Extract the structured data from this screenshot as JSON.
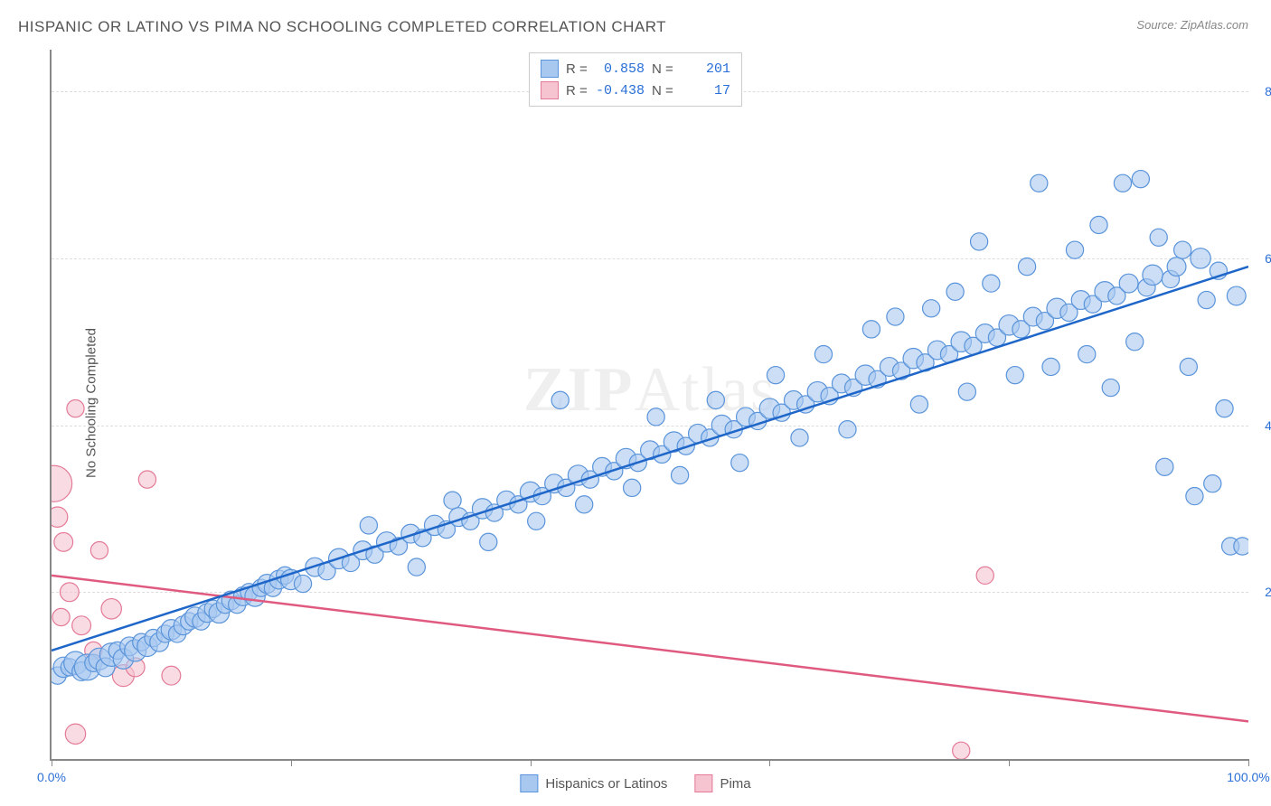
{
  "title": "HISPANIC OR LATINO VS PIMA NO SCHOOLING COMPLETED CORRELATION CHART",
  "source_label": "Source:",
  "source_name": "ZipAtlas.com",
  "ylabel": "No Schooling Completed",
  "watermark_bold": "ZIP",
  "watermark_light": "Atlas",
  "chart": {
    "type": "scatter-with-regression",
    "xlim": [
      0,
      100
    ],
    "ylim": [
      0,
      8.5
    ],
    "xtick_positions": [
      0,
      20,
      40,
      60,
      80,
      100
    ],
    "xtick_labels": [
      "0.0%",
      "",
      "",
      "",
      "",
      "100.0%"
    ],
    "ytick_positions": [
      2,
      4,
      6,
      8
    ],
    "ytick_labels": [
      "2.0%",
      "4.0%",
      "6.0%",
      "8.0%"
    ],
    "background_color": "#ffffff",
    "grid_color": "#dddddd",
    "axis_color": "#888888",
    "series": [
      {
        "name": "Hispanics or Latinos",
        "key": "hispanic",
        "color_fill": "#a8c8f0",
        "color_stroke": "#5a94da",
        "line_color": "#1f66c9",
        "marker_opacity": 0.6,
        "marker_radius_base": 8,
        "R": "0.858",
        "N": "201",
        "reg_line": {
          "x1": 0,
          "y1": 1.3,
          "x2": 100,
          "y2": 5.9
        },
        "points": [
          [
            0.5,
            1.0,
            1.2
          ],
          [
            1,
            1.1,
            1.4
          ],
          [
            1.5,
            1.1,
            1.2
          ],
          [
            2,
            1.15,
            1.6
          ],
          [
            2.5,
            1.05,
            1.3
          ],
          [
            3,
            1.1,
            1.8
          ],
          [
            3.5,
            1.15,
            1.2
          ],
          [
            4,
            1.2,
            1.5
          ],
          [
            4.5,
            1.1,
            1.3
          ],
          [
            5,
            1.25,
            1.6
          ],
          [
            5.5,
            1.3,
            1.2
          ],
          [
            6,
            1.2,
            1.4
          ],
          [
            6.5,
            1.35,
            1.3
          ],
          [
            7,
            1.3,
            1.5
          ],
          [
            7.5,
            1.4,
            1.2
          ],
          [
            8,
            1.35,
            1.4
          ],
          [
            8.5,
            1.45,
            1.2
          ],
          [
            9,
            1.4,
            1.3
          ],
          [
            9.5,
            1.5,
            1.2
          ],
          [
            10,
            1.55,
            1.4
          ],
          [
            10.5,
            1.5,
            1.2
          ],
          [
            11,
            1.6,
            1.3
          ],
          [
            11.5,
            1.65,
            1.2
          ],
          [
            12,
            1.7,
            1.4
          ],
          [
            12.5,
            1.65,
            1.2
          ],
          [
            13,
            1.75,
            1.3
          ],
          [
            13.5,
            1.8,
            1.2
          ],
          [
            14,
            1.75,
            1.4
          ],
          [
            14.5,
            1.85,
            1.2
          ],
          [
            15,
            1.9,
            1.3
          ],
          [
            15.5,
            1.85,
            1.2
          ],
          [
            16,
            1.95,
            1.3
          ],
          [
            16.5,
            2.0,
            1.2
          ],
          [
            17,
            1.95,
            1.4
          ],
          [
            17.5,
            2.05,
            1.2
          ],
          [
            18,
            2.1,
            1.3
          ],
          [
            18.5,
            2.05,
            1.2
          ],
          [
            19,
            2.15,
            1.3
          ],
          [
            19.5,
            2.2,
            1.2
          ],
          [
            20,
            2.15,
            1.4
          ],
          [
            21,
            2.1,
            1.2
          ],
          [
            22,
            2.3,
            1.3
          ],
          [
            23,
            2.25,
            1.2
          ],
          [
            24,
            2.4,
            1.4
          ],
          [
            25,
            2.35,
            1.2
          ],
          [
            26,
            2.5,
            1.3
          ],
          [
            26.5,
            2.8,
            1.2
          ],
          [
            27,
            2.45,
            1.2
          ],
          [
            28,
            2.6,
            1.4
          ],
          [
            29,
            2.55,
            1.2
          ],
          [
            30,
            2.7,
            1.3
          ],
          [
            30.5,
            2.3,
            1.2
          ],
          [
            31,
            2.65,
            1.2
          ],
          [
            32,
            2.8,
            1.4
          ],
          [
            33,
            2.75,
            1.2
          ],
          [
            33.5,
            3.1,
            1.2
          ],
          [
            34,
            2.9,
            1.3
          ],
          [
            35,
            2.85,
            1.2
          ],
          [
            36,
            3.0,
            1.4
          ],
          [
            36.5,
            2.6,
            1.2
          ],
          [
            37,
            2.95,
            1.2
          ],
          [
            38,
            3.1,
            1.3
          ],
          [
            39,
            3.05,
            1.2
          ],
          [
            40,
            3.2,
            1.4
          ],
          [
            40.5,
            2.85,
            1.2
          ],
          [
            41,
            3.15,
            1.2
          ],
          [
            42,
            3.3,
            1.3
          ],
          [
            42.5,
            4.3,
            1.2
          ],
          [
            43,
            3.25,
            1.2
          ],
          [
            44,
            3.4,
            1.4
          ],
          [
            44.5,
            3.05,
            1.2
          ],
          [
            45,
            3.35,
            1.2
          ],
          [
            46,
            3.5,
            1.3
          ],
          [
            47,
            3.45,
            1.2
          ],
          [
            48,
            3.6,
            1.4
          ],
          [
            48.5,
            3.25,
            1.2
          ],
          [
            49,
            3.55,
            1.2
          ],
          [
            50,
            3.7,
            1.3
          ],
          [
            50.5,
            4.1,
            1.2
          ],
          [
            51,
            3.65,
            1.2
          ],
          [
            52,
            3.8,
            1.4
          ],
          [
            52.5,
            3.4,
            1.2
          ],
          [
            53,
            3.75,
            1.2
          ],
          [
            54,
            3.9,
            1.3
          ],
          [
            55,
            3.85,
            1.2
          ],
          [
            55.5,
            4.3,
            1.2
          ],
          [
            56,
            4.0,
            1.4
          ],
          [
            57,
            3.95,
            1.2
          ],
          [
            57.5,
            3.55,
            1.2
          ],
          [
            58,
            4.1,
            1.3
          ],
          [
            59,
            4.05,
            1.2
          ],
          [
            60,
            4.2,
            1.4
          ],
          [
            60.5,
            4.6,
            1.2
          ],
          [
            61,
            4.15,
            1.2
          ],
          [
            62,
            4.3,
            1.3
          ],
          [
            62.5,
            3.85,
            1.2
          ],
          [
            63,
            4.25,
            1.2
          ],
          [
            64,
            4.4,
            1.4
          ],
          [
            64.5,
            4.85,
            1.2
          ],
          [
            65,
            4.35,
            1.2
          ],
          [
            66,
            4.5,
            1.3
          ],
          [
            66.5,
            3.95,
            1.2
          ],
          [
            67,
            4.45,
            1.2
          ],
          [
            68,
            4.6,
            1.4
          ],
          [
            68.5,
            5.15,
            1.2
          ],
          [
            69,
            4.55,
            1.2
          ],
          [
            70,
            4.7,
            1.3
          ],
          [
            70.5,
            5.3,
            1.2
          ],
          [
            71,
            4.65,
            1.2
          ],
          [
            72,
            4.8,
            1.4
          ],
          [
            72.5,
            4.25,
            1.2
          ],
          [
            73,
            4.75,
            1.2
          ],
          [
            73.5,
            5.4,
            1.2
          ],
          [
            74,
            4.9,
            1.3
          ],
          [
            75,
            4.85,
            1.2
          ],
          [
            75.5,
            5.6,
            1.2
          ],
          [
            76,
            5.0,
            1.4
          ],
          [
            76.5,
            4.4,
            1.2
          ],
          [
            77,
            4.95,
            1.2
          ],
          [
            77.5,
            6.2,
            1.2
          ],
          [
            78,
            5.1,
            1.3
          ],
          [
            78.5,
            5.7,
            1.2
          ],
          [
            79,
            5.05,
            1.2
          ],
          [
            80,
            5.2,
            1.4
          ],
          [
            80.5,
            4.6,
            1.2
          ],
          [
            81,
            5.15,
            1.2
          ],
          [
            81.5,
            5.9,
            1.2
          ],
          [
            82,
            5.3,
            1.3
          ],
          [
            82.5,
            6.9,
            1.2
          ],
          [
            83,
            5.25,
            1.2
          ],
          [
            83.5,
            4.7,
            1.2
          ],
          [
            84,
            5.4,
            1.4
          ],
          [
            85,
            5.35,
            1.2
          ],
          [
            85.5,
            6.1,
            1.2
          ],
          [
            86,
            5.5,
            1.3
          ],
          [
            86.5,
            4.85,
            1.2
          ],
          [
            87,
            5.45,
            1.2
          ],
          [
            87.5,
            6.4,
            1.2
          ],
          [
            88,
            5.6,
            1.4
          ],
          [
            88.5,
            4.45,
            1.2
          ],
          [
            89,
            5.55,
            1.2
          ],
          [
            89.5,
            6.9,
            1.2
          ],
          [
            90,
            5.7,
            1.3
          ],
          [
            90.5,
            5.0,
            1.2
          ],
          [
            91,
            6.95,
            1.2
          ],
          [
            91.5,
            5.65,
            1.2
          ],
          [
            92,
            5.8,
            1.4
          ],
          [
            92.5,
            6.25,
            1.2
          ],
          [
            93,
            3.5,
            1.2
          ],
          [
            93.5,
            5.75,
            1.2
          ],
          [
            94,
            5.9,
            1.3
          ],
          [
            94.5,
            6.1,
            1.2
          ],
          [
            95,
            4.7,
            1.2
          ],
          [
            95.5,
            3.15,
            1.2
          ],
          [
            96,
            6.0,
            1.4
          ],
          [
            96.5,
            5.5,
            1.2
          ],
          [
            97,
            3.3,
            1.2
          ],
          [
            97.5,
            5.85,
            1.2
          ],
          [
            98,
            4.2,
            1.2
          ],
          [
            98.5,
            2.55,
            1.2
          ],
          [
            99,
            5.55,
            1.3
          ],
          [
            99.5,
            2.55,
            1.2
          ]
        ]
      },
      {
        "name": "Pima",
        "key": "pima",
        "color_fill": "#f5c4d0",
        "color_stroke": "#e47a97",
        "line_color": "#e05a80",
        "marker_opacity": 0.6,
        "marker_radius_base": 8,
        "R": "-0.438",
        "N": "17",
        "reg_line": {
          "x1": 0,
          "y1": 2.2,
          "x2": 100,
          "y2": 0.45
        },
        "points": [
          [
            0.2,
            3.3,
            2.5
          ],
          [
            2,
            4.2,
            1.2
          ],
          [
            0.5,
            2.9,
            1.4
          ],
          [
            1,
            2.6,
            1.3
          ],
          [
            5,
            1.8,
            1.4
          ],
          [
            4,
            2.5,
            1.2
          ],
          [
            2.5,
            1.6,
            1.3
          ],
          [
            0.8,
            1.7,
            1.2
          ],
          [
            6,
            1.0,
            1.5
          ],
          [
            8,
            3.35,
            1.2
          ],
          [
            7,
            1.1,
            1.3
          ],
          [
            10,
            1.0,
            1.3
          ],
          [
            2,
            0.3,
            1.4
          ],
          [
            3.5,
            1.3,
            1.2
          ],
          [
            1.5,
            2.0,
            1.3
          ],
          [
            78,
            2.2,
            1.2
          ],
          [
            76,
            0.1,
            1.2
          ]
        ]
      }
    ]
  },
  "legend_bottom": [
    {
      "label": "Hispanics or Latinos",
      "fill": "#a8c8f0",
      "stroke": "#5a94da"
    },
    {
      "label": "Pima",
      "fill": "#f5c4d0",
      "stroke": "#e47a97"
    }
  ]
}
